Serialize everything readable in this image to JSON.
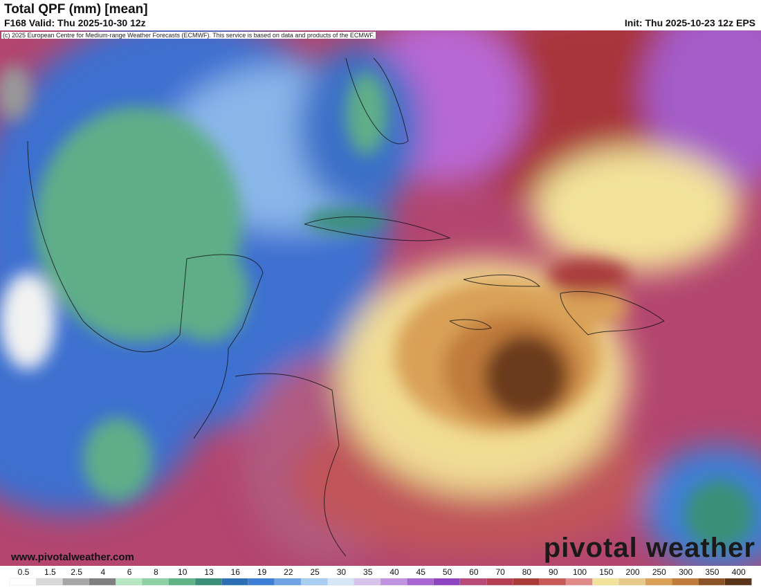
{
  "header": {
    "title": "Total QPF (mm) [mean]",
    "valid": "F168 Valid: Thu 2025-10-30 12z",
    "init": "Init: Thu 2025-10-23 12z EPS",
    "credit": "(c) 2025 European Centre for Medium-range Weather Forecasts (ECMWF). This service is based on data and products of the ECMWF."
  },
  "watermark": {
    "url": "www.pivotalweather.com",
    "brand": "pivotal weather"
  },
  "legend": {
    "labels": [
      0.5,
      1.5,
      2.5,
      4,
      6,
      8,
      10,
      13,
      16,
      19,
      22,
      25,
      30,
      35,
      40,
      45,
      50,
      60,
      70,
      80,
      90,
      100,
      150,
      200,
      250,
      300,
      350,
      400
    ],
    "colors": [
      "#ffffff",
      "#d9d9d9",
      "#a6a6a6",
      "#7f7f7f",
      "#b7e6c2",
      "#8fd1a4",
      "#5fb386",
      "#3a8f78",
      "#2c6fb5",
      "#3d7fd6",
      "#6fa3e6",
      "#a7cdf0",
      "#d6e6f7",
      "#d8c3ec",
      "#c094e0",
      "#a766d4",
      "#8f45c2",
      "#b84a7a",
      "#b63e54",
      "#a93a3a",
      "#c85a5a",
      "#e08a8a",
      "#f3e39a",
      "#e9c98a",
      "#d9a056",
      "#c07a3a",
      "#8c5228",
      "#5a3418"
    ]
  }
}
